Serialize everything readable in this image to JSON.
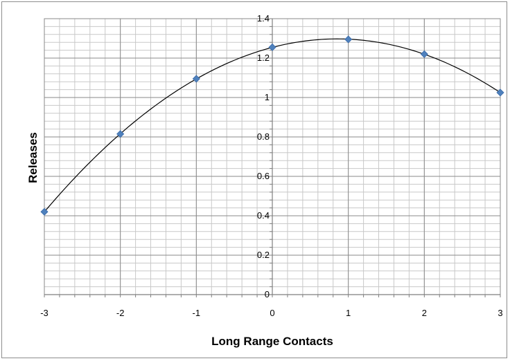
{
  "chart_data": {
    "type": "scatter",
    "title": "",
    "xlabel": "Long Range Contacts",
    "ylabel": "Releases",
    "xlim": [
      -3,
      3
    ],
    "ylim": [
      0,
      1.4
    ],
    "x_ticks": [
      "-3",
      "-2",
      "-1",
      "0",
      "1",
      "2",
      "3"
    ],
    "y_ticks": [
      "0",
      "0.2",
      "0.4",
      "0.6",
      "0.8",
      "1",
      "1.2",
      "1.4"
    ],
    "series": [
      {
        "x": [
          -3,
          -2,
          -1,
          0,
          1,
          2,
          3
        ],
        "y": [
          0.42,
          0.815,
          1.095,
          1.255,
          1.295,
          1.22,
          1.025
        ],
        "marker": "diamond",
        "color": "#4f81bd"
      }
    ],
    "trendline": {
      "type": "polynomial",
      "color": "#000000"
    },
    "grid": true,
    "legend": "none"
  }
}
